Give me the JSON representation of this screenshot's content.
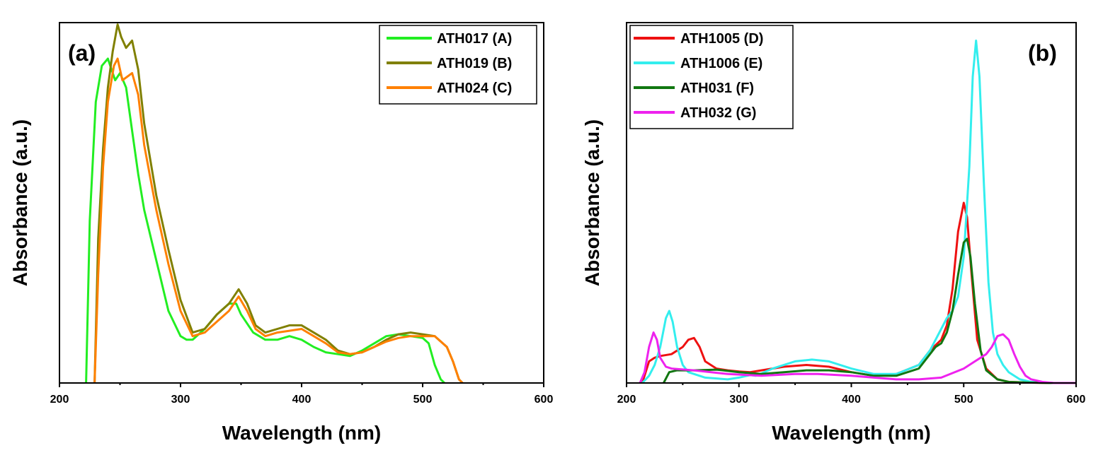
{
  "chart_data": [
    {
      "type": "line",
      "panel_label": "(a)",
      "xlabel": "Wavelength (nm)",
      "ylabel": "Absorbance (a.u.)",
      "xlim": [
        200,
        600
      ],
      "ylim": [
        0,
        1.0
      ],
      "xticks": [
        200,
        300,
        400,
        500,
        600
      ],
      "legend_position": "top-right",
      "series": [
        {
          "name": "ATH017 (A)",
          "color": "#22ee22",
          "points": [
            [
              222,
              0
            ],
            [
              225,
              0.45
            ],
            [
              230,
              0.78
            ],
            [
              235,
              0.88
            ],
            [
              240,
              0.9
            ],
            [
              243,
              0.87
            ],
            [
              246,
              0.84
            ],
            [
              250,
              0.86
            ],
            [
              255,
              0.82
            ],
            [
              260,
              0.7
            ],
            [
              265,
              0.58
            ],
            [
              270,
              0.48
            ],
            [
              280,
              0.34
            ],
            [
              290,
              0.2
            ],
            [
              300,
              0.13
            ],
            [
              305,
              0.12
            ],
            [
              310,
              0.12
            ],
            [
              320,
              0.15
            ],
            [
              330,
              0.19
            ],
            [
              340,
              0.22
            ],
            [
              346,
              0.22
            ],
            [
              350,
              0.19
            ],
            [
              360,
              0.14
            ],
            [
              370,
              0.12
            ],
            [
              380,
              0.12
            ],
            [
              390,
              0.13
            ],
            [
              400,
              0.12
            ],
            [
              410,
              0.1
            ],
            [
              420,
              0.085
            ],
            [
              430,
              0.08
            ],
            [
              440,
              0.075
            ],
            [
              450,
              0.09
            ],
            [
              460,
              0.11
            ],
            [
              470,
              0.13
            ],
            [
              480,
              0.135
            ],
            [
              490,
              0.13
            ],
            [
              500,
              0.125
            ],
            [
              505,
              0.11
            ],
            [
              510,
              0.05
            ],
            [
              515,
              0.01
            ],
            [
              518,
              0
            ]
          ]
        },
        {
          "name": "ATH019 (B)",
          "color": "#808000",
          "points": [
            [
              229,
              0
            ],
            [
              232,
              0.4
            ],
            [
              236,
              0.65
            ],
            [
              240,
              0.82
            ],
            [
              244,
              0.92
            ],
            [
              248,
              0.995
            ],
            [
              251,
              0.96
            ],
            [
              255,
              0.93
            ],
            [
              260,
              0.95
            ],
            [
              265,
              0.87
            ],
            [
              270,
              0.72
            ],
            [
              280,
              0.52
            ],
            [
              290,
              0.37
            ],
            [
              300,
              0.23
            ],
            [
              310,
              0.14
            ],
            [
              320,
              0.15
            ],
            [
              330,
              0.19
            ],
            [
              340,
              0.22
            ],
            [
              348,
              0.26
            ],
            [
              355,
              0.22
            ],
            [
              362,
              0.16
            ],
            [
              370,
              0.14
            ],
            [
              380,
              0.15
            ],
            [
              390,
              0.16
            ],
            [
              400,
              0.16
            ],
            [
              410,
              0.14
            ],
            [
              420,
              0.12
            ],
            [
              430,
              0.09
            ],
            [
              440,
              0.08
            ],
            [
              450,
              0.085
            ],
            [
              460,
              0.1
            ],
            [
              470,
              0.12
            ],
            [
              480,
              0.135
            ],
            [
              490,
              0.14
            ],
            [
              500,
              0.135
            ],
            [
              510,
              0.13
            ],
            [
              520,
              0.1
            ],
            [
              525,
              0.06
            ],
            [
              530,
              0.01
            ],
            [
              533,
              0
            ]
          ]
        },
        {
          "name": "ATH024 (C)",
          "color": "#ff8000",
          "points": [
            [
              229,
              0
            ],
            [
              232,
              0.3
            ],
            [
              236,
              0.6
            ],
            [
              240,
              0.78
            ],
            [
              245,
              0.88
            ],
            [
              248,
              0.9
            ],
            [
              252,
              0.84
            ],
            [
              256,
              0.85
            ],
            [
              260,
              0.86
            ],
            [
              265,
              0.8
            ],
            [
              270,
              0.66
            ],
            [
              280,
              0.48
            ],
            [
              290,
              0.33
            ],
            [
              300,
              0.2
            ],
            [
              310,
              0.13
            ],
            [
              320,
              0.14
            ],
            [
              330,
              0.17
            ],
            [
              340,
              0.2
            ],
            [
              348,
              0.24
            ],
            [
              355,
              0.2
            ],
            [
              362,
              0.15
            ],
            [
              370,
              0.13
            ],
            [
              380,
              0.14
            ],
            [
              390,
              0.145
            ],
            [
              400,
              0.15
            ],
            [
              410,
              0.13
            ],
            [
              420,
              0.11
            ],
            [
              430,
              0.085
            ],
            [
              440,
              0.08
            ],
            [
              450,
              0.085
            ],
            [
              460,
              0.1
            ],
            [
              470,
              0.115
            ],
            [
              480,
              0.125
            ],
            [
              490,
              0.13
            ],
            [
              500,
              0.13
            ],
            [
              510,
              0.13
            ],
            [
              520,
              0.1
            ],
            [
              525,
              0.06
            ],
            [
              530,
              0.01
            ],
            [
              533,
              0
            ]
          ]
        }
      ]
    },
    {
      "type": "line",
      "panel_label": "(b)",
      "xlabel": "Wavelength (nm)",
      "ylabel": "Absorbance (a.u.)",
      "xlim": [
        200,
        600
      ],
      "ylim": [
        0,
        1.0
      ],
      "xticks": [
        200,
        300,
        400,
        500,
        600
      ],
      "legend_position": "top-left",
      "series": [
        {
          "name": "ATH1005 (D)",
          "color": "#ee1111",
          "points": [
            [
              214,
              0
            ],
            [
              220,
              0.06
            ],
            [
              225,
              0.07
            ],
            [
              230,
              0.075
            ],
            [
              240,
              0.08
            ],
            [
              250,
              0.1
            ],
            [
              255,
              0.12
            ],
            [
              260,
              0.125
            ],
            [
              265,
              0.1
            ],
            [
              270,
              0.06
            ],
            [
              280,
              0.04
            ],
            [
              290,
              0.035
            ],
            [
              300,
              0.032
            ],
            [
              310,
              0.03
            ],
            [
              320,
              0.035
            ],
            [
              340,
              0.045
            ],
            [
              360,
              0.05
            ],
            [
              380,
              0.045
            ],
            [
              400,
              0.03
            ],
            [
              420,
              0.02
            ],
            [
              440,
              0.025
            ],
            [
              460,
              0.05
            ],
            [
              470,
              0.09
            ],
            [
              480,
              0.12
            ],
            [
              485,
              0.16
            ],
            [
              490,
              0.26
            ],
            [
              495,
              0.42
            ],
            [
              500,
              0.5
            ],
            [
              503,
              0.46
            ],
            [
              507,
              0.3
            ],
            [
              512,
              0.12
            ],
            [
              520,
              0.04
            ],
            [
              530,
              0.01
            ],
            [
              540,
              0.003
            ],
            [
              560,
              0.001
            ],
            [
              580,
              0
            ],
            [
              600,
              0
            ]
          ]
        },
        {
          "name": "ATH1006 (E)",
          "color": "#33eeee",
          "points": [
            [
              214,
              0
            ],
            [
              220,
              0.02
            ],
            [
              225,
              0.05
            ],
            [
              230,
              0.1
            ],
            [
              235,
              0.18
            ],
            [
              238,
              0.2
            ],
            [
              241,
              0.17
            ],
            [
              245,
              0.1
            ],
            [
              250,
              0.05
            ],
            [
              255,
              0.03
            ],
            [
              270,
              0.015
            ],
            [
              290,
              0.01
            ],
            [
              300,
              0.015
            ],
            [
              310,
              0.022
            ],
            [
              315,
              0.02
            ],
            [
              330,
              0.04
            ],
            [
              350,
              0.06
            ],
            [
              365,
              0.065
            ],
            [
              380,
              0.06
            ],
            [
              400,
              0.04
            ],
            [
              420,
              0.025
            ],
            [
              440,
              0.025
            ],
            [
              460,
              0.05
            ],
            [
              470,
              0.09
            ],
            [
              480,
              0.15
            ],
            [
              485,
              0.18
            ],
            [
              490,
              0.2
            ],
            [
              495,
              0.24
            ],
            [
              500,
              0.35
            ],
            [
              505,
              0.6
            ],
            [
              508,
              0.85
            ],
            [
              511,
              0.95
            ],
            [
              514,
              0.85
            ],
            [
              518,
              0.55
            ],
            [
              522,
              0.28
            ],
            [
              526,
              0.14
            ],
            [
              530,
              0.08
            ],
            [
              535,
              0.05
            ],
            [
              540,
              0.03
            ],
            [
              550,
              0.01
            ],
            [
              560,
              0.003
            ],
            [
              580,
              0
            ],
            [
              600,
              0
            ]
          ]
        },
        {
          "name": "ATH031 (F)",
          "color": "#117711",
          "points": [
            [
              233,
              0
            ],
            [
              238,
              0.03
            ],
            [
              245,
              0.035
            ],
            [
              260,
              0.035
            ],
            [
              280,
              0.037
            ],
            [
              300,
              0.03
            ],
            [
              320,
              0.025
            ],
            [
              340,
              0.03
            ],
            [
              360,
              0.035
            ],
            [
              380,
              0.035
            ],
            [
              400,
              0.03
            ],
            [
              420,
              0.02
            ],
            [
              440,
              0.02
            ],
            [
              460,
              0.04
            ],
            [
              470,
              0.08
            ],
            [
              475,
              0.1
            ],
            [
              480,
              0.11
            ],
            [
              485,
              0.14
            ],
            [
              490,
              0.2
            ],
            [
              495,
              0.3
            ],
            [
              500,
              0.39
            ],
            [
              503,
              0.4
            ],
            [
              506,
              0.35
            ],
            [
              510,
              0.22
            ],
            [
              515,
              0.09
            ],
            [
              520,
              0.035
            ],
            [
              530,
              0.01
            ],
            [
              540,
              0.003
            ],
            [
              560,
              0.001
            ],
            [
              580,
              0
            ],
            [
              600,
              0
            ]
          ]
        },
        {
          "name": "ATH032 (G)",
          "color": "#ee22ee",
          "points": [
            [
              212,
              0
            ],
            [
              216,
              0.03
            ],
            [
              220,
              0.1
            ],
            [
              224,
              0.14
            ],
            [
              227,
              0.12
            ],
            [
              230,
              0.07
            ],
            [
              235,
              0.045
            ],
            [
              240,
              0.04
            ],
            [
              260,
              0.035
            ],
            [
              290,
              0.025
            ],
            [
              320,
              0.02
            ],
            [
              350,
              0.025
            ],
            [
              370,
              0.025
            ],
            [
              400,
              0.02
            ],
            [
              420,
              0.015
            ],
            [
              440,
              0.01
            ],
            [
              460,
              0.01
            ],
            [
              480,
              0.015
            ],
            [
              500,
              0.04
            ],
            [
              510,
              0.06
            ],
            [
              520,
              0.08
            ],
            [
              525,
              0.1
            ],
            [
              530,
              0.13
            ],
            [
              535,
              0.135
            ],
            [
              540,
              0.12
            ],
            [
              545,
              0.08
            ],
            [
              550,
              0.045
            ],
            [
              555,
              0.02
            ],
            [
              560,
              0.01
            ],
            [
              570,
              0.003
            ],
            [
              580,
              0
            ],
            [
              600,
              0
            ]
          ]
        }
      ]
    }
  ]
}
